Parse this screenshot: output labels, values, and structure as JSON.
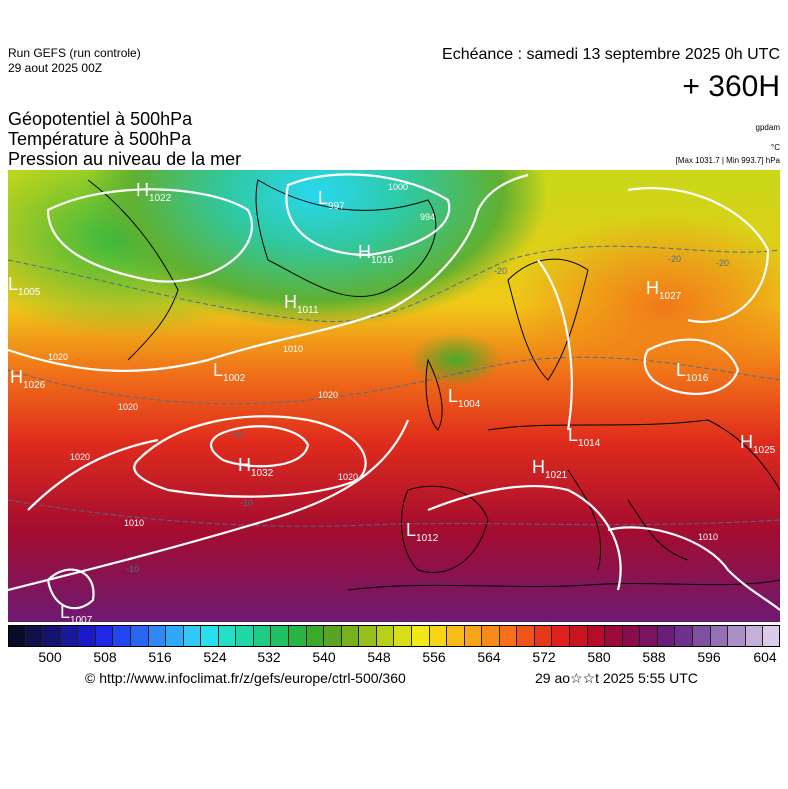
{
  "header": {
    "run": "Run GEFS (run controle)",
    "run_date": "29 aout 2025 00Z",
    "echeance": "Echéance : samedi 13 septembre 2025 0h UTC",
    "lead": "+ 360H",
    "title1": "Géopotentiel à 500hPa",
    "title2": "Température à 500hPa",
    "title3": "Pression au niveau de la mer",
    "unit_gp": "gpdam",
    "unit_t": "°C",
    "unit_p": "[Max 1031.7 | Min 993.7] hPa"
  },
  "colorbar": {
    "ticks": [
      "500",
      "508",
      "516",
      "524",
      "532",
      "540",
      "548",
      "556",
      "564",
      "572",
      "580",
      "588",
      "596",
      "604"
    ],
    "colors": [
      "#0a0a2a",
      "#10104a",
      "#141470",
      "#18189a",
      "#1a1ac8",
      "#1e28e6",
      "#2246f0",
      "#2a66f4",
      "#2e88f6",
      "#30a8f8",
      "#30c8f8",
      "#28e0ec",
      "#20e0c8",
      "#20d8a6",
      "#20cc84",
      "#22c064",
      "#28b444",
      "#3aaa2a",
      "#5aa424",
      "#78b01e",
      "#98c01a",
      "#b8d018",
      "#d8de18",
      "#f0e818",
      "#f8d418",
      "#f8bc18",
      "#f8a418",
      "#f88a18",
      "#f87018",
      "#f05418",
      "#e8381a",
      "#e0201c",
      "#cc1420",
      "#b40c2a",
      "#9c0a3a",
      "#8a0c4c",
      "#781462",
      "#6a1e7a",
      "#70308e",
      "#8050a0",
      "#9470b4",
      "#aa90c6",
      "#c4b0d8",
      "#dccbe6"
    ]
  },
  "footer": {
    "url": "© http://www.infoclimat.fr/z/gefs/europe/ctrl-500/360",
    "timestamp": "29 ao☆☆t 2025  5:55 UTC"
  },
  "map": {
    "pressure_centers": [
      {
        "type": "H",
        "value": "1022"
      },
      {
        "type": "L",
        "value": "997"
      },
      {
        "type": "H",
        "value": "1016"
      },
      {
        "type": "H",
        "value": "1011"
      },
      {
        "type": "L",
        "value": "1005"
      },
      {
        "type": "L",
        "value": "1002"
      },
      {
        "type": "H",
        "value": "1026"
      },
      {
        "type": "L",
        "value": "1004"
      },
      {
        "type": "H",
        "value": "1032"
      },
      {
        "type": "L",
        "value": "1012"
      },
      {
        "type": "L",
        "value": "1007"
      },
      {
        "type": "H",
        "value": "1027"
      },
      {
        "type": "L",
        "value": "1016"
      },
      {
        "type": "L",
        "value": "1014"
      },
      {
        "type": "H",
        "value": "1021"
      },
      {
        "type": "H",
        "value": "1025"
      }
    ],
    "isobar_labels": [
      "1020",
      "1010",
      "994",
      "1000",
      "1020",
      "1020",
      "1020",
      "1020",
      "1010",
      "1010"
    ],
    "temp_labels": [
      "-20",
      "-20",
      "-10",
      "-10",
      "-10",
      "-20"
    ]
  }
}
